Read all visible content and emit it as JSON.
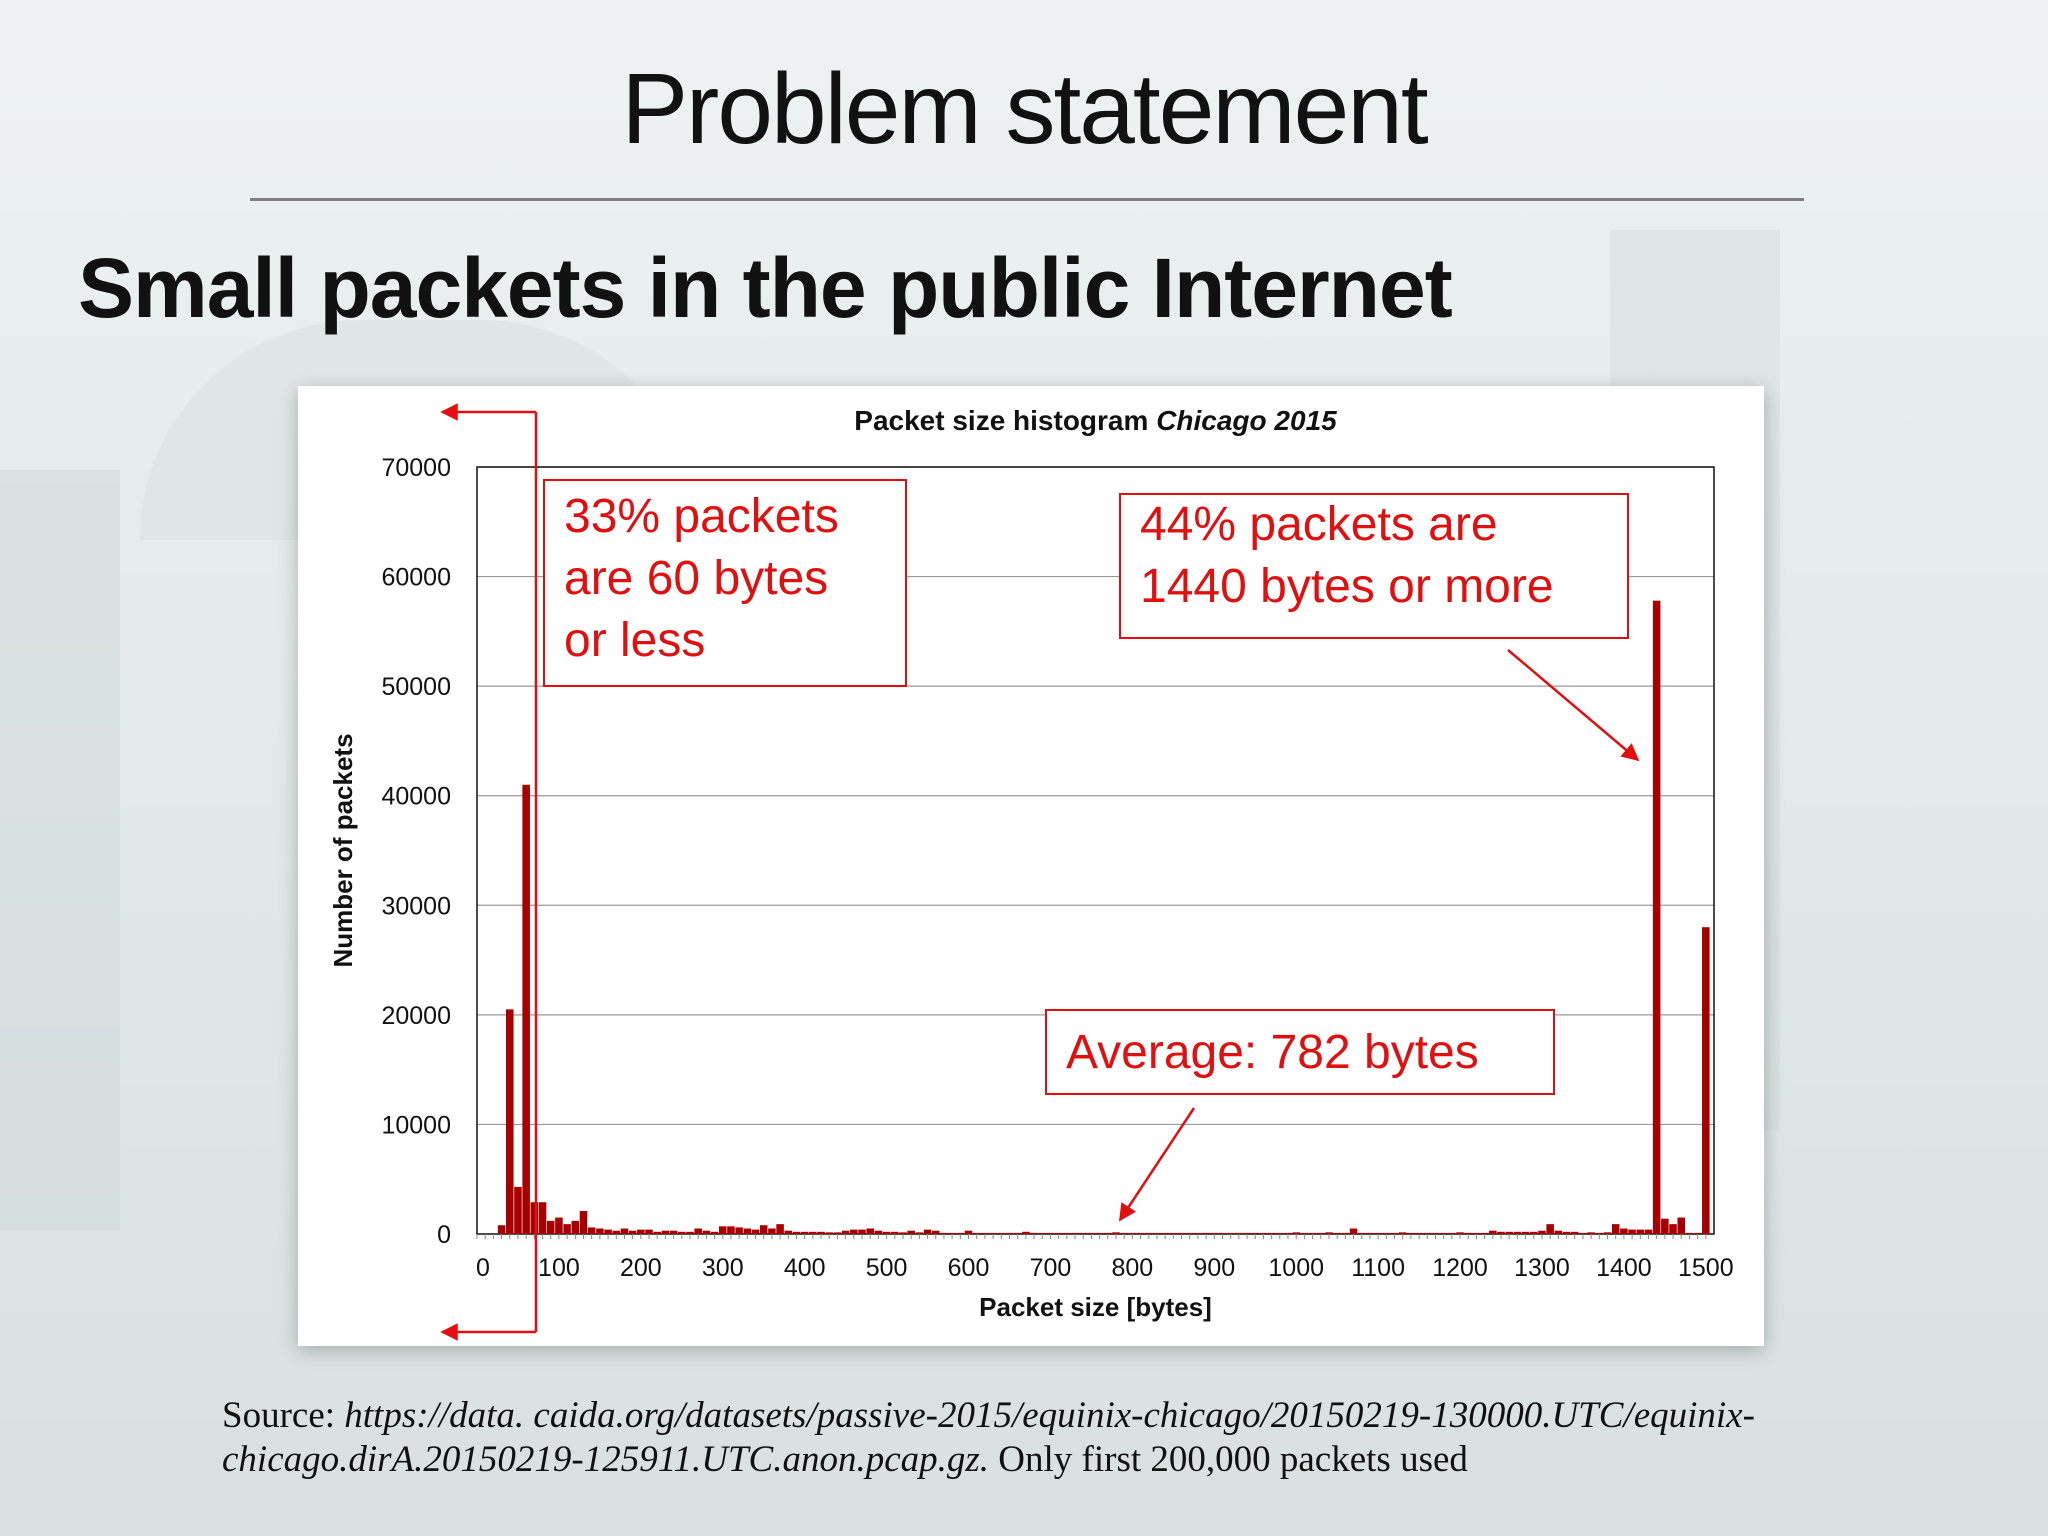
{
  "slide": {
    "title": "Problem statement",
    "subtitle": "Small packets in the public Internet",
    "source_prefix": "Source: ",
    "source_url": "https://data. caida.org/datasets/passive-2015/equinix-chicago/20150219-130000.UTC/equinix-chicago.dirA.20150219-125911.UTC.anon.pcap.gz.",
    "source_suffix": " Only first 200,000 packets used"
  },
  "chart_data": {
    "type": "bar",
    "title": "Packet size histogram",
    "title_italic": "Chicago 2015",
    "xlabel": "Packet size [bytes]",
    "ylabel": "Number of packets",
    "xlim": [
      0,
      1510
    ],
    "ylim": [
      0,
      70000
    ],
    "xticks": [
      0,
      100,
      200,
      300,
      400,
      500,
      600,
      700,
      800,
      900,
      1000,
      1100,
      1200,
      1300,
      1400,
      1500
    ],
    "yticks": [
      0,
      10000,
      20000,
      30000,
      40000,
      50000,
      60000,
      70000
    ],
    "grid": true,
    "bar_color": "#a80000",
    "bin_width": 10,
    "bins": [
      {
        "x": 30,
        "y": 800
      },
      {
        "x": 40,
        "y": 20500
      },
      {
        "x": 50,
        "y": 4300
      },
      {
        "x": 60,
        "y": 41000
      },
      {
        "x": 70,
        "y": 2900
      },
      {
        "x": 80,
        "y": 2900
      },
      {
        "x": 90,
        "y": 1200
      },
      {
        "x": 100,
        "y": 1500
      },
      {
        "x": 110,
        "y": 900
      },
      {
        "x": 120,
        "y": 1200
      },
      {
        "x": 130,
        "y": 2100
      },
      {
        "x": 140,
        "y": 600
      },
      {
        "x": 150,
        "y": 500
      },
      {
        "x": 160,
        "y": 400
      },
      {
        "x": 170,
        "y": 300
      },
      {
        "x": 180,
        "y": 500
      },
      {
        "x": 190,
        "y": 300
      },
      {
        "x": 200,
        "y": 400
      },
      {
        "x": 210,
        "y": 400
      },
      {
        "x": 220,
        "y": 200
      },
      {
        "x": 230,
        "y": 300
      },
      {
        "x": 240,
        "y": 300
      },
      {
        "x": 250,
        "y": 200
      },
      {
        "x": 260,
        "y": 200
      },
      {
        "x": 270,
        "y": 500
      },
      {
        "x": 280,
        "y": 300
      },
      {
        "x": 290,
        "y": 200
      },
      {
        "x": 300,
        "y": 700
      },
      {
        "x": 310,
        "y": 700
      },
      {
        "x": 320,
        "y": 600
      },
      {
        "x": 330,
        "y": 500
      },
      {
        "x": 340,
        "y": 400
      },
      {
        "x": 350,
        "y": 800
      },
      {
        "x": 360,
        "y": 500
      },
      {
        "x": 370,
        "y": 900
      },
      {
        "x": 380,
        "y": 300
      },
      {
        "x": 390,
        "y": 200
      },
      {
        "x": 400,
        "y": 200
      },
      {
        "x": 410,
        "y": 200
      },
      {
        "x": 420,
        "y": 200
      },
      {
        "x": 430,
        "y": 150
      },
      {
        "x": 440,
        "y": 150
      },
      {
        "x": 450,
        "y": 300
      },
      {
        "x": 460,
        "y": 400
      },
      {
        "x": 470,
        "y": 400
      },
      {
        "x": 480,
        "y": 500
      },
      {
        "x": 490,
        "y": 300
      },
      {
        "x": 500,
        "y": 200
      },
      {
        "x": 510,
        "y": 200
      },
      {
        "x": 520,
        "y": 150
      },
      {
        "x": 530,
        "y": 300
      },
      {
        "x": 540,
        "y": 150
      },
      {
        "x": 550,
        "y": 400
      },
      {
        "x": 560,
        "y": 300
      },
      {
        "x": 570,
        "y": 100
      },
      {
        "x": 580,
        "y": 100
      },
      {
        "x": 590,
        "y": 100
      },
      {
        "x": 600,
        "y": 300
      },
      {
        "x": 610,
        "y": 100
      },
      {
        "x": 620,
        "y": 100
      },
      {
        "x": 630,
        "y": 100
      },
      {
        "x": 640,
        "y": 100
      },
      {
        "x": 650,
        "y": 100
      },
      {
        "x": 660,
        "y": 100
      },
      {
        "x": 670,
        "y": 200
      },
      {
        "x": 680,
        "y": 100
      },
      {
        "x": 690,
        "y": 100
      },
      {
        "x": 700,
        "y": 100
      },
      {
        "x": 710,
        "y": 100
      },
      {
        "x": 720,
        "y": 100
      },
      {
        "x": 730,
        "y": 100
      },
      {
        "x": 740,
        "y": 100
      },
      {
        "x": 750,
        "y": 100
      },
      {
        "x": 760,
        "y": 100
      },
      {
        "x": 770,
        "y": 100
      },
      {
        "x": 780,
        "y": 150
      },
      {
        "x": 790,
        "y": 100
      },
      {
        "x": 800,
        "y": 100
      },
      {
        "x": 810,
        "y": 100
      },
      {
        "x": 820,
        "y": 100
      },
      {
        "x": 830,
        "y": 100
      },
      {
        "x": 840,
        "y": 100
      },
      {
        "x": 850,
        "y": 100
      },
      {
        "x": 860,
        "y": 100
      },
      {
        "x": 870,
        "y": 100
      },
      {
        "x": 880,
        "y": 100
      },
      {
        "x": 890,
        "y": 100
      },
      {
        "x": 900,
        "y": 100
      },
      {
        "x": 910,
        "y": 100
      },
      {
        "x": 920,
        "y": 100
      },
      {
        "x": 930,
        "y": 100
      },
      {
        "x": 940,
        "y": 100
      },
      {
        "x": 950,
        "y": 100
      },
      {
        "x": 960,
        "y": 100
      },
      {
        "x": 970,
        "y": 100
      },
      {
        "x": 980,
        "y": 100
      },
      {
        "x": 990,
        "y": 100
      },
      {
        "x": 1000,
        "y": 150
      },
      {
        "x": 1010,
        "y": 100
      },
      {
        "x": 1020,
        "y": 100
      },
      {
        "x": 1030,
        "y": 100
      },
      {
        "x": 1040,
        "y": 150
      },
      {
        "x": 1050,
        "y": 100
      },
      {
        "x": 1060,
        "y": 100
      },
      {
        "x": 1070,
        "y": 500
      },
      {
        "x": 1080,
        "y": 100
      },
      {
        "x": 1090,
        "y": 100
      },
      {
        "x": 1100,
        "y": 100
      },
      {
        "x": 1110,
        "y": 100
      },
      {
        "x": 1120,
        "y": 100
      },
      {
        "x": 1130,
        "y": 150
      },
      {
        "x": 1140,
        "y": 100
      },
      {
        "x": 1150,
        "y": 100
      },
      {
        "x": 1160,
        "y": 100
      },
      {
        "x": 1170,
        "y": 100
      },
      {
        "x": 1180,
        "y": 100
      },
      {
        "x": 1190,
        "y": 100
      },
      {
        "x": 1200,
        "y": 150
      },
      {
        "x": 1210,
        "y": 100
      },
      {
        "x": 1220,
        "y": 100
      },
      {
        "x": 1230,
        "y": 100
      },
      {
        "x": 1240,
        "y": 300
      },
      {
        "x": 1250,
        "y": 200
      },
      {
        "x": 1260,
        "y": 200
      },
      {
        "x": 1270,
        "y": 200
      },
      {
        "x": 1280,
        "y": 200
      },
      {
        "x": 1290,
        "y": 200
      },
      {
        "x": 1300,
        "y": 300
      },
      {
        "x": 1310,
        "y": 900
      },
      {
        "x": 1320,
        "y": 300
      },
      {
        "x": 1330,
        "y": 200
      },
      {
        "x": 1340,
        "y": 200
      },
      {
        "x": 1350,
        "y": 100
      },
      {
        "x": 1360,
        "y": 150
      },
      {
        "x": 1370,
        "y": 100
      },
      {
        "x": 1380,
        "y": 150
      },
      {
        "x": 1390,
        "y": 900
      },
      {
        "x": 1400,
        "y": 500
      },
      {
        "x": 1410,
        "y": 400
      },
      {
        "x": 1420,
        "y": 400
      },
      {
        "x": 1430,
        "y": 400
      },
      {
        "x": 1440,
        "y": 57800
      },
      {
        "x": 1450,
        "y": 1400
      },
      {
        "x": 1460,
        "y": 900
      },
      {
        "x": 1470,
        "y": 1500
      },
      {
        "x": 1480,
        "y": 100
      },
      {
        "x": 1490,
        "y": 100
      },
      {
        "x": 1500,
        "y": 28000
      }
    ],
    "annotations": [
      {
        "lines": [
          "33% packets",
          "are 60 bytes",
          "or less"
        ]
      },
      {
        "lines": [
          "44% packets are",
          "1440 bytes or more"
        ]
      },
      {
        "lines": [
          "Average: 782 bytes"
        ]
      }
    ],
    "annotation_color": "#e01010"
  }
}
